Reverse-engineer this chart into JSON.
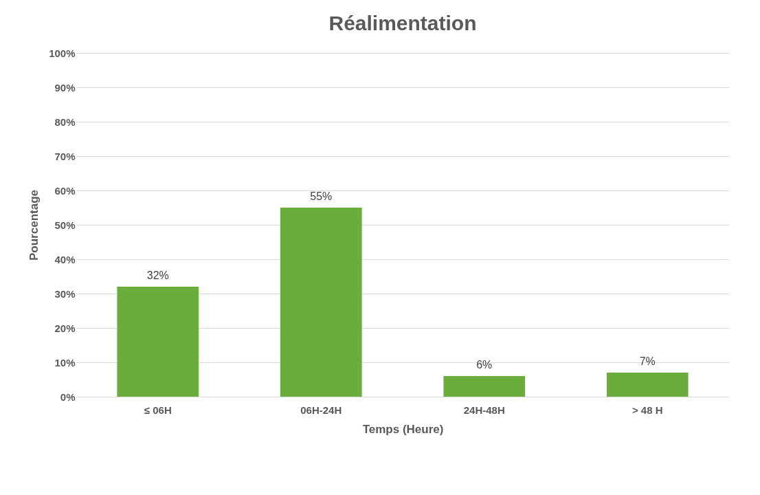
{
  "chart_data": {
    "type": "bar",
    "title": "Réalimentation",
    "xlabel": "Temps (Heure)",
    "ylabel": "Pourcentage",
    "categories": [
      "≤ 06H",
      "06H-24H",
      "24H-48H",
      "> 48 H"
    ],
    "values": [
      32,
      55,
      6,
      7
    ],
    "value_labels": [
      "32%",
      "55%",
      "6%",
      "7%"
    ],
    "color": "#6aad3d",
    "ylim": [
      0,
      100
    ],
    "yticks": [
      {
        "value": 0,
        "label": "0%"
      },
      {
        "value": 10,
        "label": "10%"
      },
      {
        "value": 20,
        "label": "20%"
      },
      {
        "value": 30,
        "label": "30%"
      },
      {
        "value": 40,
        "label": "40%"
      },
      {
        "value": 50,
        "label": "50%"
      },
      {
        "value": 60,
        "label": "60%"
      },
      {
        "value": 70,
        "label": "70%"
      },
      {
        "value": 80,
        "label": "80%"
      },
      {
        "value": 90,
        "label": "90%"
      },
      {
        "value": 100,
        "label": "100%"
      }
    ],
    "grid": "y"
  }
}
